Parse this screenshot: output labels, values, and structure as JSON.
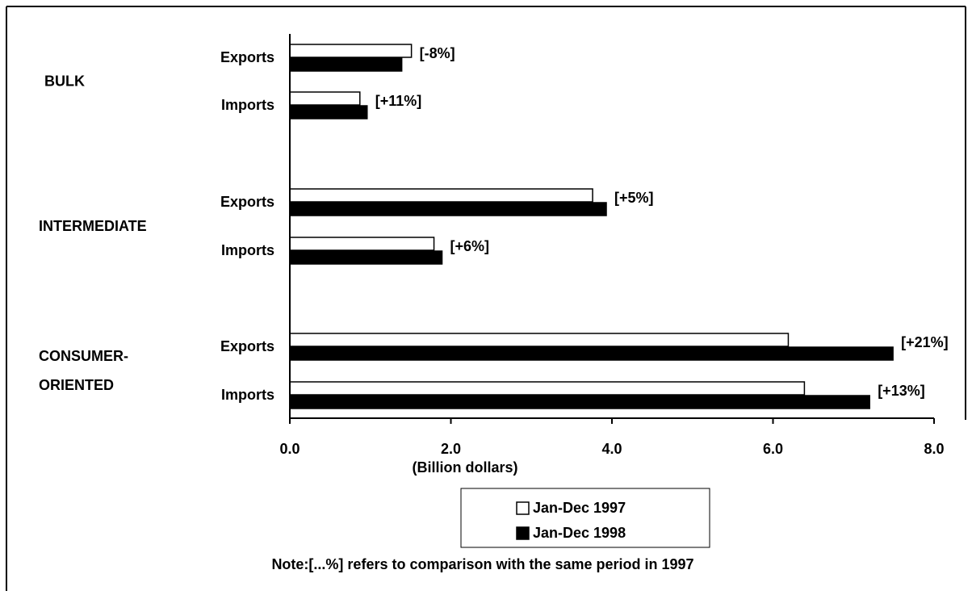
{
  "chart_data": {
    "type": "bar",
    "orientation": "horizontal",
    "categories": [
      "Exports",
      "Imports",
      "Exports",
      "Imports",
      "Exports",
      "Imports"
    ],
    "groups": [
      {
        "label": [
          "BULK"
        ],
        "rows": [
          0,
          1
        ]
      },
      {
        "label": [
          "INTERMEDIATE"
        ],
        "rows": [
          2,
          3
        ]
      },
      {
        "label": [
          "CONSUMER-",
          "ORIENTED"
        ],
        "rows": [
          4,
          5
        ]
      }
    ],
    "series": [
      {
        "name": "Jan-Dec 1997",
        "color": "#ffffff",
        "values": [
          1.51,
          0.87,
          3.76,
          1.79,
          6.19,
          6.39
        ]
      },
      {
        "name": "Jan-Dec 1998",
        "color": "#000000",
        "values": [
          1.39,
          0.96,
          3.93,
          1.89,
          7.49,
          7.2
        ]
      }
    ],
    "annotations": [
      "[-8%]",
      "[+11%]",
      "[+5%]",
      "[+6%]",
      "[+21%]",
      "[+13%]"
    ],
    "xlabel": "(Billion dollars)",
    "xlim": [
      0,
      8
    ],
    "xticks": [
      {
        "value": 0,
        "label": "0.0"
      },
      {
        "value": 2,
        "label": "2.0"
      },
      {
        "value": 4,
        "label": "4.0"
      },
      {
        "value": 6,
        "label": "6.0"
      },
      {
        "value": 8,
        "label": "8.0"
      }
    ],
    "note": "Note:[...%] refers to comparison with the same period in 1997",
    "grid": false
  }
}
